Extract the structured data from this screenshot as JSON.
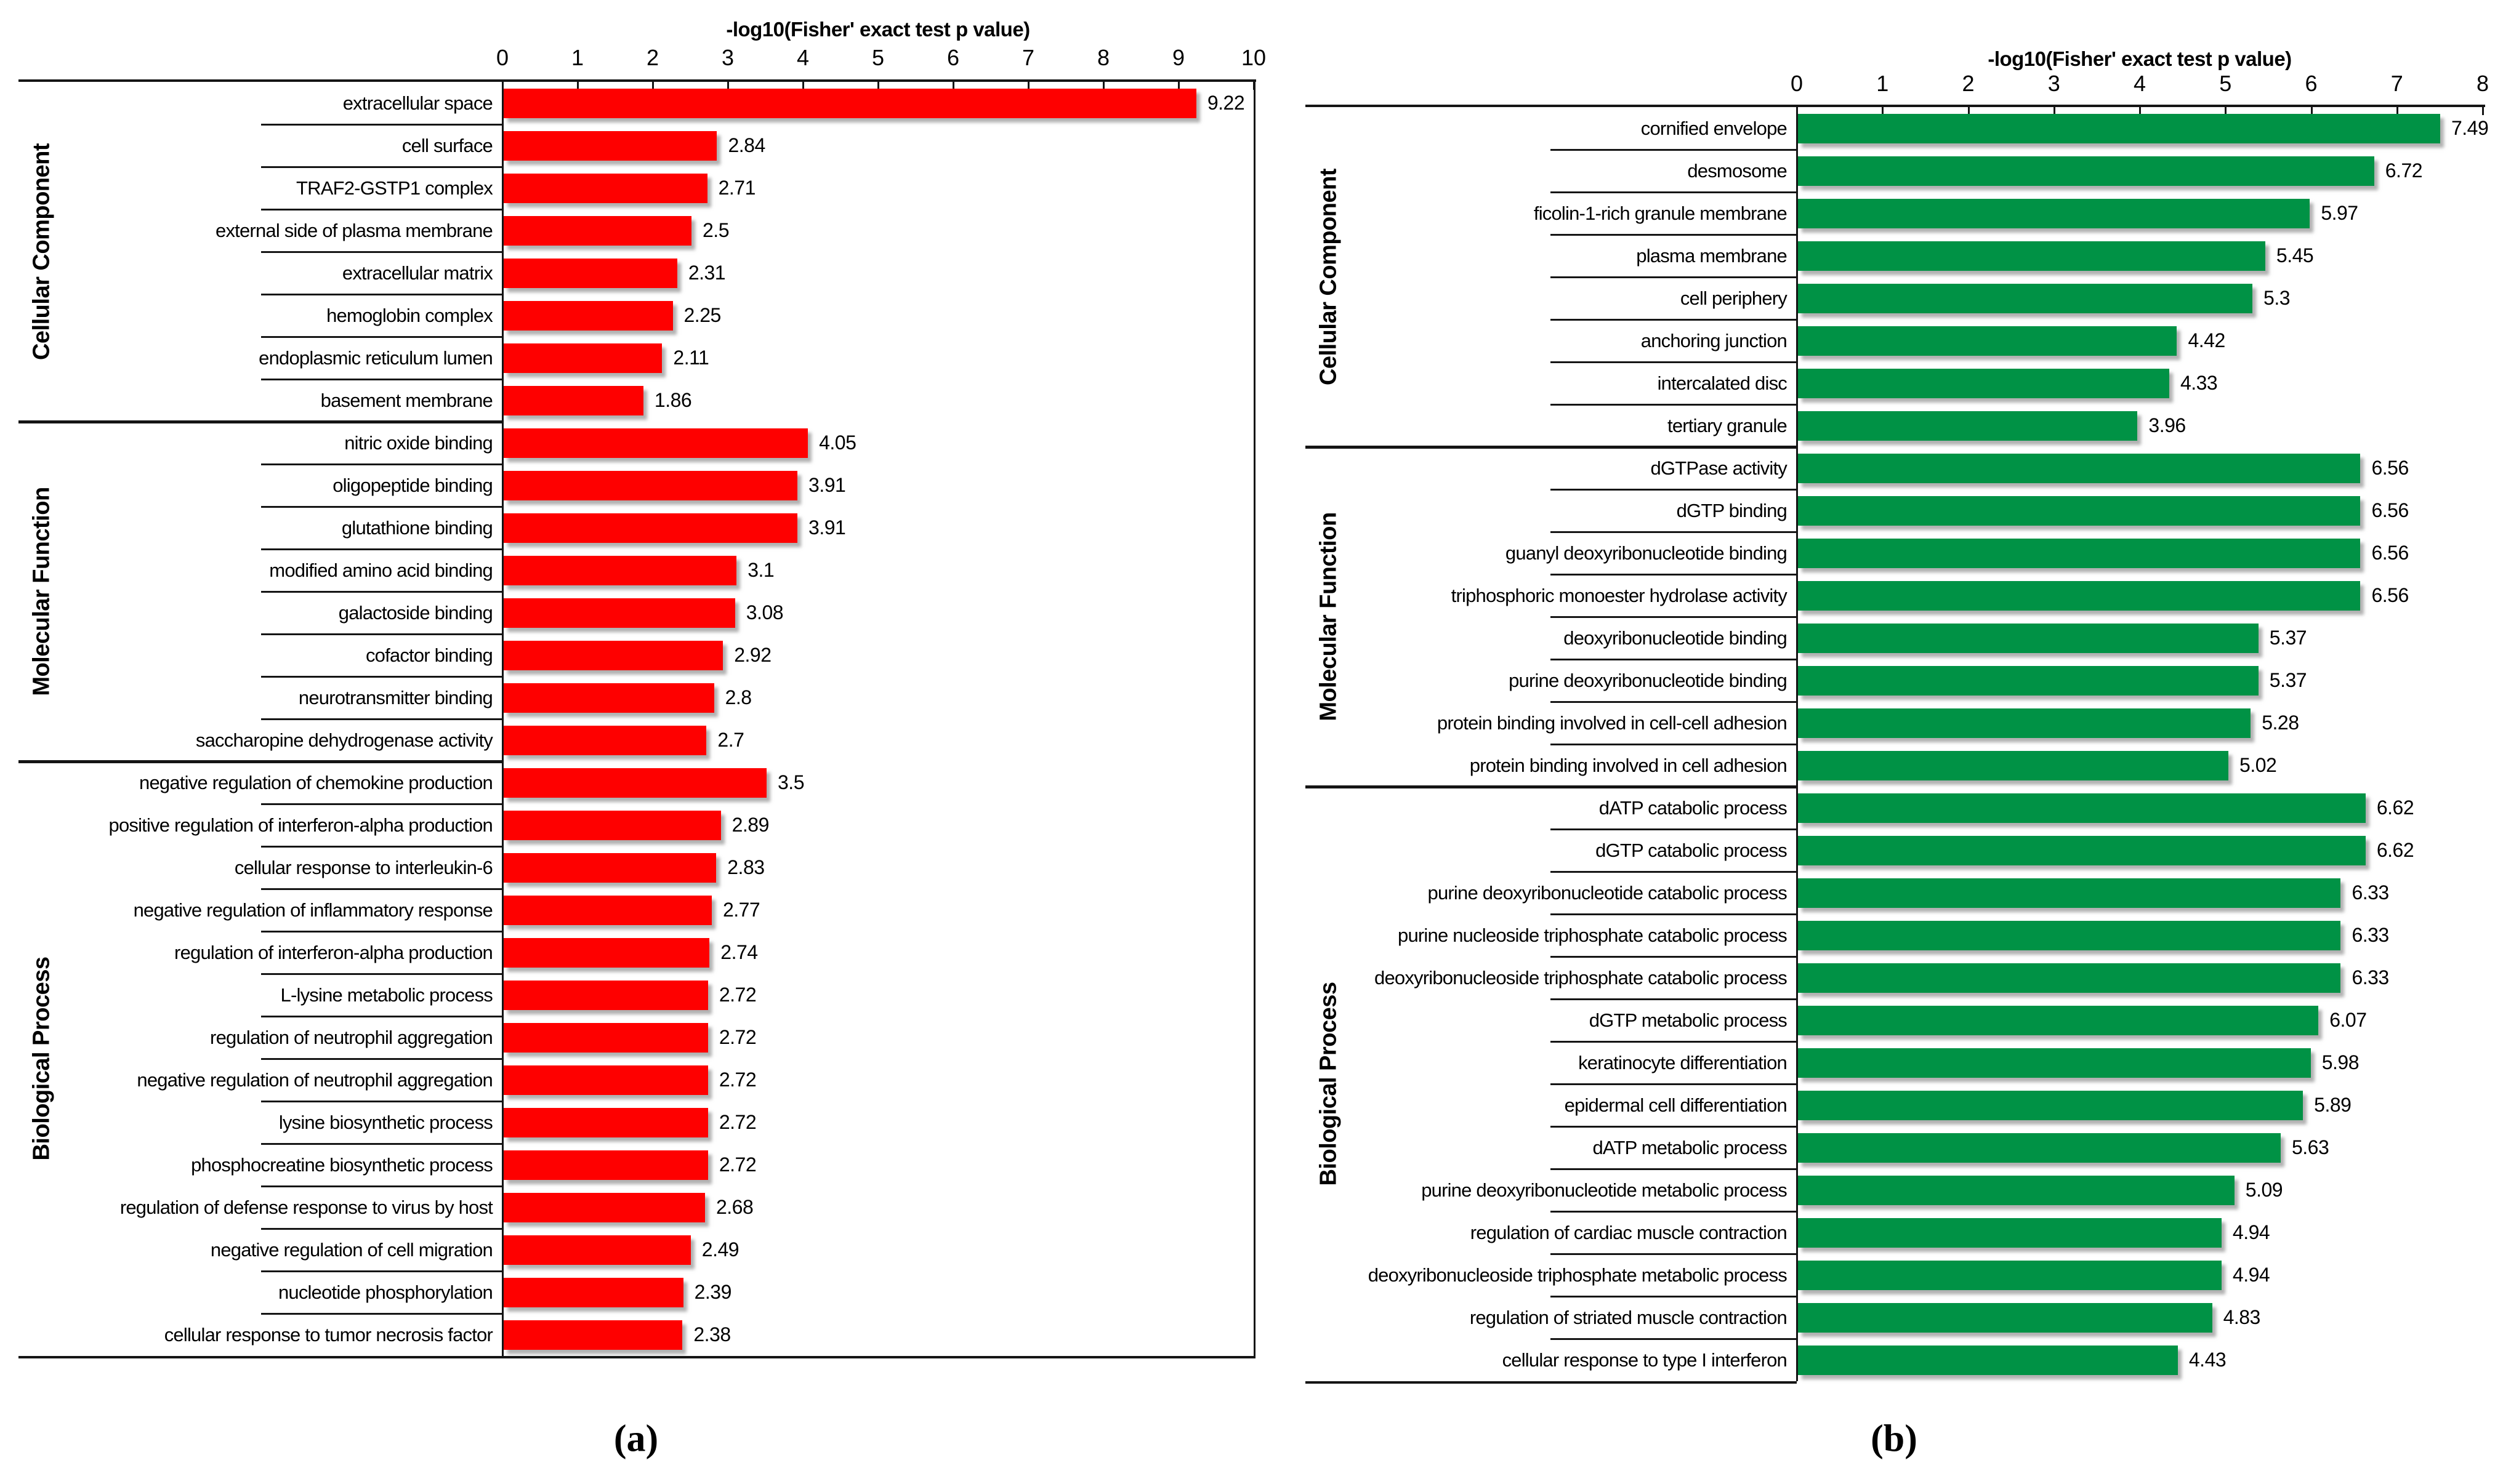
{
  "figure": {
    "captions": [
      {
        "id": "a",
        "text": "(a)"
      },
      {
        "id": "b",
        "text": "(b)"
      }
    ]
  },
  "chart_data": [
    {
      "panel": "a",
      "type": "bar",
      "orientation": "horizontal",
      "title": "-log10(Fisher' exact test p value)",
      "bar_color": "#fe0000",
      "xlim": [
        0,
        10
      ],
      "tick_labels": [
        "0",
        "1",
        "2",
        "3",
        "4",
        "5",
        "6",
        "7",
        "8",
        "9",
        "10"
      ],
      "grid": false,
      "groups": [
        {
          "label": "Cellular Component",
          "items": [
            {
              "label": "extracellular space",
              "value": 9.22,
              "value_label": "9.22"
            },
            {
              "label": "cell surface",
              "value": 2.84,
              "value_label": "2.84"
            },
            {
              "label": "TRAF2-GSTP1 complex",
              "value": 2.71,
              "value_label": "2.71"
            },
            {
              "label": "external side of plasma membrane",
              "value": 2.5,
              "value_label": "2.5"
            },
            {
              "label": "extracellular matrix",
              "value": 2.31,
              "value_label": "2.31"
            },
            {
              "label": "hemoglobin complex",
              "value": 2.25,
              "value_label": "2.25"
            },
            {
              "label": "endoplasmic reticulum lumen",
              "value": 2.11,
              "value_label": "2.11"
            },
            {
              "label": "basement membrane",
              "value": 1.86,
              "value_label": "1.86"
            }
          ]
        },
        {
          "label": "Molecular Function",
          "items": [
            {
              "label": "nitric oxide binding",
              "value": 4.05,
              "value_label": "4.05"
            },
            {
              "label": "oligopeptide binding",
              "value": 3.91,
              "value_label": "3.91"
            },
            {
              "label": "glutathione binding",
              "value": 3.91,
              "value_label": "3.91"
            },
            {
              "label": "modified amino acid binding",
              "value": 3.1,
              "value_label": "3.1"
            },
            {
              "label": "galactoside binding",
              "value": 3.08,
              "value_label": "3.08"
            },
            {
              "label": "cofactor binding",
              "value": 2.92,
              "value_label": "2.92"
            },
            {
              "label": "neurotransmitter binding",
              "value": 2.8,
              "value_label": "2.8"
            },
            {
              "label": "saccharopine dehydrogenase activity",
              "value": 2.7,
              "value_label": "2.7"
            }
          ]
        },
        {
          "label": "Biological Process",
          "items": [
            {
              "label": "negative regulation of chemokine production",
              "value": 3.5,
              "value_label": "3.5"
            },
            {
              "label": "positive regulation of interferon-alpha production",
              "value": 2.89,
              "value_label": "2.89"
            },
            {
              "label": "cellular response to interleukin-6",
              "value": 2.83,
              "value_label": "2.83"
            },
            {
              "label": "negative regulation of inflammatory response",
              "value": 2.77,
              "value_label": "2.77"
            },
            {
              "label": "regulation of interferon-alpha production",
              "value": 2.74,
              "value_label": "2.74"
            },
            {
              "label": "L-lysine metabolic process",
              "value": 2.72,
              "value_label": "2.72"
            },
            {
              "label": "regulation of neutrophil aggregation",
              "value": 2.72,
              "value_label": "2.72"
            },
            {
              "label": "negative regulation of neutrophil aggregation",
              "value": 2.72,
              "value_label": "2.72"
            },
            {
              "label": "lysine biosynthetic process",
              "value": 2.72,
              "value_label": "2.72"
            },
            {
              "label": "phosphocreatine biosynthetic process",
              "value": 2.72,
              "value_label": "2.72"
            },
            {
              "label": "regulation of defense response to virus by host",
              "value": 2.68,
              "value_label": "2.68"
            },
            {
              "label": "negative regulation of cell migration",
              "value": 2.49,
              "value_label": "2.49"
            },
            {
              "label": "nucleotide phosphorylation",
              "value": 2.39,
              "value_label": "2.39"
            },
            {
              "label": "cellular response to tumor necrosis factor",
              "value": 2.38,
              "value_label": "2.38"
            }
          ]
        }
      ]
    },
    {
      "panel": "b",
      "type": "bar",
      "orientation": "horizontal",
      "title": "-log10(Fisher' exact test p value)",
      "bar_color": "#009245",
      "xlim": [
        0,
        8
      ],
      "tick_labels": [
        "0",
        "1",
        "2",
        "3",
        "4",
        "5",
        "6",
        "7",
        "8"
      ],
      "grid": false,
      "groups": [
        {
          "label": "Cellular Component",
          "items": [
            {
              "label": "cornified envelope",
              "value": 7.49,
              "value_label": "7.49"
            },
            {
              "label": "desmosome",
              "value": 6.72,
              "value_label": "6.72"
            },
            {
              "label": "ficolin-1-rich granule membrane",
              "value": 5.97,
              "value_label": "5.97"
            },
            {
              "label": "plasma membrane",
              "value": 5.45,
              "value_label": "5.45"
            },
            {
              "label": "cell periphery",
              "value": 5.3,
              "value_label": "5.3"
            },
            {
              "label": "anchoring junction",
              "value": 4.42,
              "value_label": "4.42"
            },
            {
              "label": "intercalated disc",
              "value": 4.33,
              "value_label": "4.33"
            },
            {
              "label": "tertiary granule",
              "value": 3.96,
              "value_label": "3.96"
            }
          ]
        },
        {
          "label": "Molecular Function",
          "items": [
            {
              "label": "dGTPase activity",
              "value": 6.56,
              "value_label": "6.56"
            },
            {
              "label": "dGTP binding",
              "value": 6.56,
              "value_label": "6.56"
            },
            {
              "label": "guanyl deoxyribonucleotide binding",
              "value": 6.56,
              "value_label": "6.56"
            },
            {
              "label": "triphosphoric monoester hydrolase activity",
              "value": 6.56,
              "value_label": "6.56"
            },
            {
              "label": "deoxyribonucleotide binding",
              "value": 5.37,
              "value_label": "5.37"
            },
            {
              "label": "purine deoxyribonucleotide binding",
              "value": 5.37,
              "value_label": "5.37"
            },
            {
              "label": "protein binding involved in cell-cell adhesion",
              "value": 5.28,
              "value_label": "5.28"
            },
            {
              "label": "protein binding involved in cell adhesion",
              "value": 5.02,
              "value_label": "5.02"
            }
          ]
        },
        {
          "label": "Biological Process",
          "items": [
            {
              "label": "dATP catabolic process",
              "value": 6.62,
              "value_label": "6.62"
            },
            {
              "label": "dGTP catabolic process",
              "value": 6.62,
              "value_label": "6.62"
            },
            {
              "label": "purine deoxyribonucleotide catabolic process",
              "value": 6.33,
              "value_label": "6.33"
            },
            {
              "label": "purine nucleoside triphosphate catabolic process",
              "value": 6.33,
              "value_label": "6.33"
            },
            {
              "label": "deoxyribonucleoside triphosphate catabolic process",
              "value": 6.33,
              "value_label": "6.33"
            },
            {
              "label": "dGTP metabolic process",
              "value": 6.07,
              "value_label": "6.07"
            },
            {
              "label": "keratinocyte differentiation",
              "value": 5.98,
              "value_label": "5.98"
            },
            {
              "label": "epidermal cell differentiation",
              "value": 5.89,
              "value_label": "5.89"
            },
            {
              "label": "dATP metabolic process",
              "value": 5.63,
              "value_label": "5.63"
            },
            {
              "label": "purine deoxyribonucleotide metabolic process",
              "value": 5.09,
              "value_label": "5.09"
            },
            {
              "label": "regulation of cardiac muscle contraction",
              "value": 4.94,
              "value_label": "4.94"
            },
            {
              "label": "deoxyribonucleoside triphosphate metabolic process",
              "value": 4.94,
              "value_label": "4.94"
            },
            {
              "label": "regulation of striated muscle contraction",
              "value": 4.83,
              "value_label": "4.83"
            },
            {
              "label": "cellular response to type I interferon",
              "value": 4.43,
              "value_label": "4.43"
            }
          ]
        }
      ]
    }
  ]
}
